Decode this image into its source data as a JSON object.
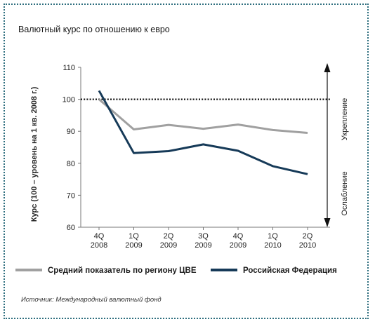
{
  "chart_data": {
    "type": "line",
    "title": "Валютный курс по отношению к евро",
    "ylabel": "Курс (100 – уровень на 1 кв. 2008 г.)",
    "ylim": [
      60,
      110
    ],
    "yticks": [
      60,
      70,
      80,
      90,
      100,
      110
    ],
    "reference_line": 100,
    "categories": [
      [
        "4Q",
        "2008"
      ],
      [
        "1Q",
        "2009"
      ],
      [
        "2Q",
        "2009"
      ],
      [
        "3Q",
        "2009"
      ],
      [
        "4Q",
        "2009"
      ],
      [
        "1Q",
        "2010"
      ],
      [
        "2Q",
        "2010"
      ]
    ],
    "series": [
      {
        "name": "Средний показатель по региону ЦВЕ",
        "color": "#a0a0a0",
        "values": [
          100.0,
          90.6,
          92.0,
          90.8,
          92.1,
          90.4,
          89.5
        ]
      },
      {
        "name": "Российская Федерация",
        "color": "#163a58",
        "values": [
          102.7,
          83.2,
          83.8,
          85.9,
          83.9,
          79.1,
          76.6
        ]
      }
    ],
    "side_labels": {
      "up": "Укрепление",
      "down": "Ослабление"
    },
    "source": "Источник: Международный валютный фонд"
  }
}
